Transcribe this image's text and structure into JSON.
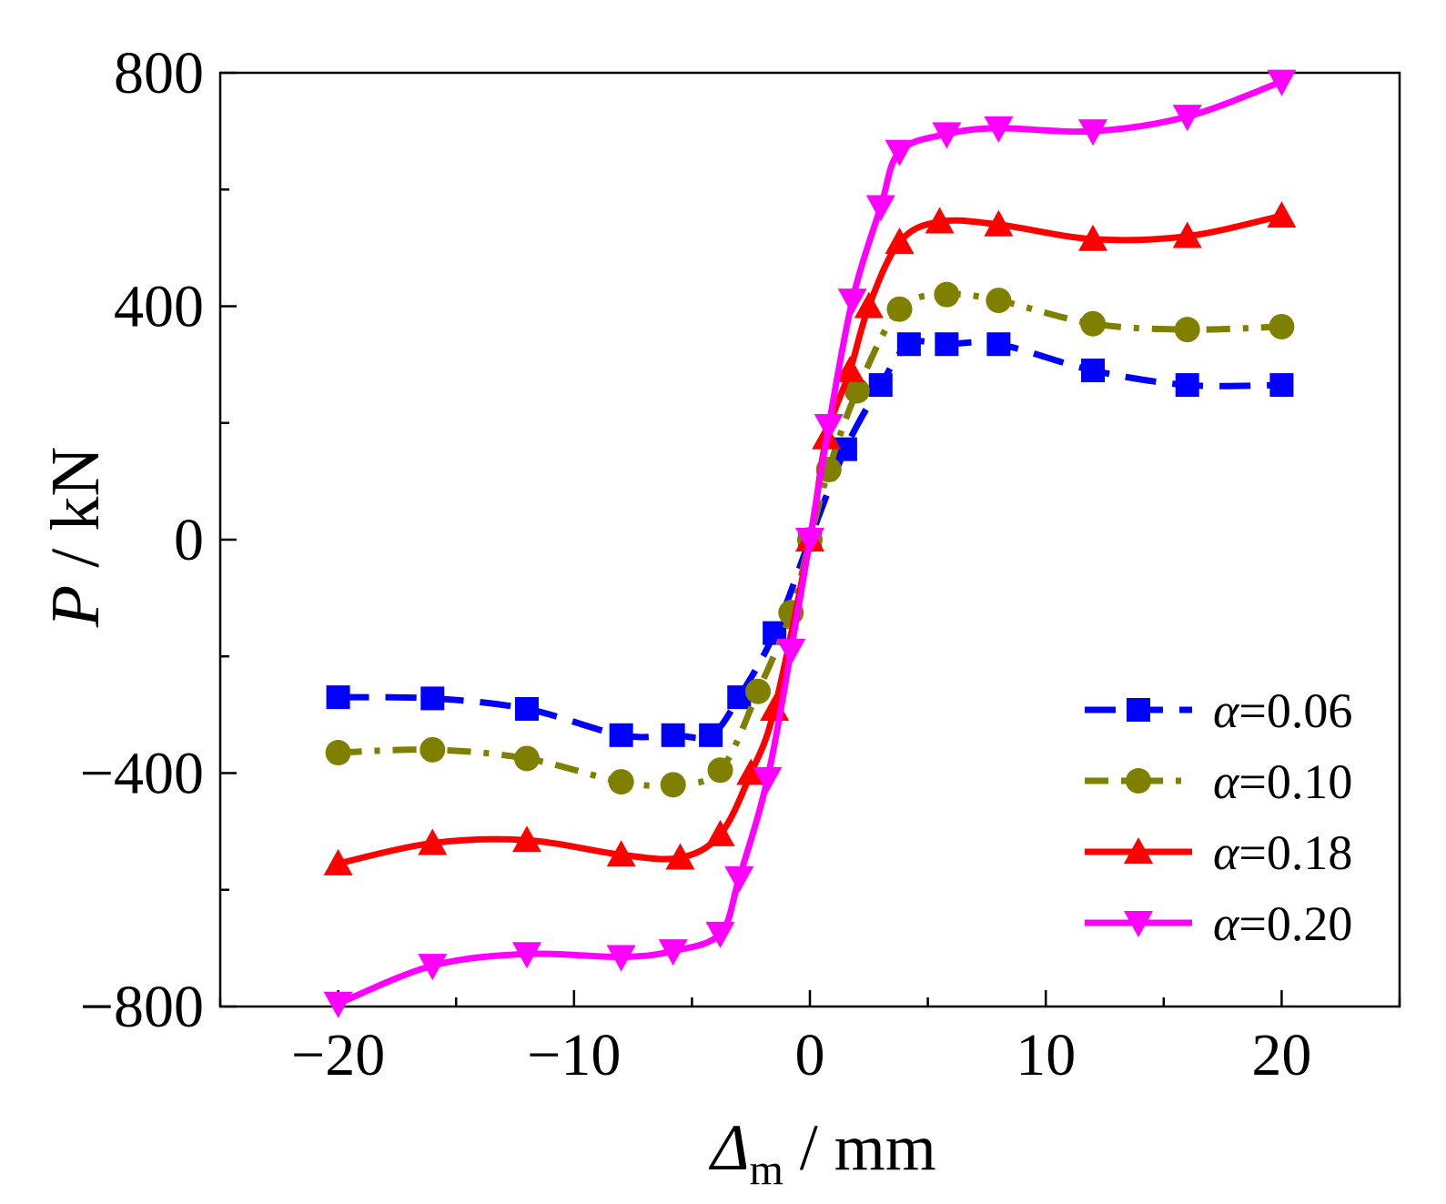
{
  "chart_data": {
    "type": "line",
    "title": "",
    "xlabel": {
      "symbol": "Δ",
      "subscript": "m",
      "unit": " / mm"
    },
    "ylabel": {
      "symbol": "P",
      "unit": " / kN"
    },
    "xlim": [
      -25,
      25
    ],
    "ylim": [
      -800,
      800
    ],
    "xticks": [
      -20,
      -10,
      0,
      10,
      20
    ],
    "xtick_labels": [
      "−20",
      "−10",
      "0",
      "10",
      "20"
    ],
    "yticks": [
      -800,
      -400,
      0,
      400,
      800
    ],
    "ytick_labels": [
      "−800",
      "−400",
      "0",
      "400",
      "800"
    ],
    "grid": false,
    "legend_position": "bottom-right",
    "series": [
      {
        "name": "α=0.06",
        "greek": "α",
        "value_text": "=0.06",
        "color": "#0000ff",
        "marker": "square",
        "linestyle": "dash",
        "x": [
          -20,
          -16,
          -12,
          -8,
          -5.8,
          -4.2,
          -3,
          -1.5,
          0,
          1.5,
          3,
          4.2,
          5.8,
          8,
          12,
          16,
          20
        ],
        "y": [
          -270,
          -272,
          -290,
          -335,
          -335,
          -335,
          -270,
          -160,
          0,
          155,
          265,
          335,
          335,
          335,
          290,
          265,
          265
        ]
      },
      {
        "name": "α=0.10",
        "greek": "α",
        "value_text": "=0.10",
        "color": "#808000",
        "marker": "circle",
        "linestyle": "dashdot",
        "x": [
          -20,
          -16,
          -12,
          -8,
          -5.8,
          -3.8,
          -2.2,
          -0.8,
          0,
          0.8,
          2,
          3.8,
          5.8,
          8,
          12,
          16,
          20
        ],
        "y": [
          -365,
          -360,
          -375,
          -415,
          -420,
          -395,
          -260,
          -125,
          0,
          120,
          255,
          395,
          420,
          410,
          370,
          360,
          365
        ]
      },
      {
        "name": "α=0.18",
        "greek": "α",
        "value_text": "=0.18",
        "color": "#ff0000",
        "marker": "triangle-up",
        "linestyle": "solid",
        "x": [
          -20,
          -16,
          -12,
          -8,
          -5.5,
          -3.8,
          -2.5,
          -1.5,
          0,
          0.7,
          1.7,
          2.5,
          3.8,
          5.5,
          8,
          12,
          16,
          20
        ],
        "y": [
          -555,
          -520,
          -515,
          -540,
          -545,
          -505,
          -400,
          -290,
          0,
          175,
          290,
          400,
          510,
          545,
          540,
          515,
          520,
          555
        ]
      },
      {
        "name": "α=0.20",
        "greek": "α",
        "value_text": "=0.20",
        "color": "#ff00ff",
        "marker": "triangle-down",
        "linestyle": "solid",
        "x": [
          -20,
          -16,
          -12,
          -8,
          -5.8,
          -3.8,
          -3,
          -1.8,
          -0.8,
          0,
          0.8,
          1.8,
          3,
          3.8,
          5.8,
          8,
          12,
          16,
          20
        ],
        "y": [
          -795,
          -730,
          -710,
          -715,
          -705,
          -675,
          -580,
          -410,
          -190,
          0,
          195,
          410,
          570,
          665,
          695,
          705,
          700,
          725,
          785
        ]
      }
    ]
  }
}
